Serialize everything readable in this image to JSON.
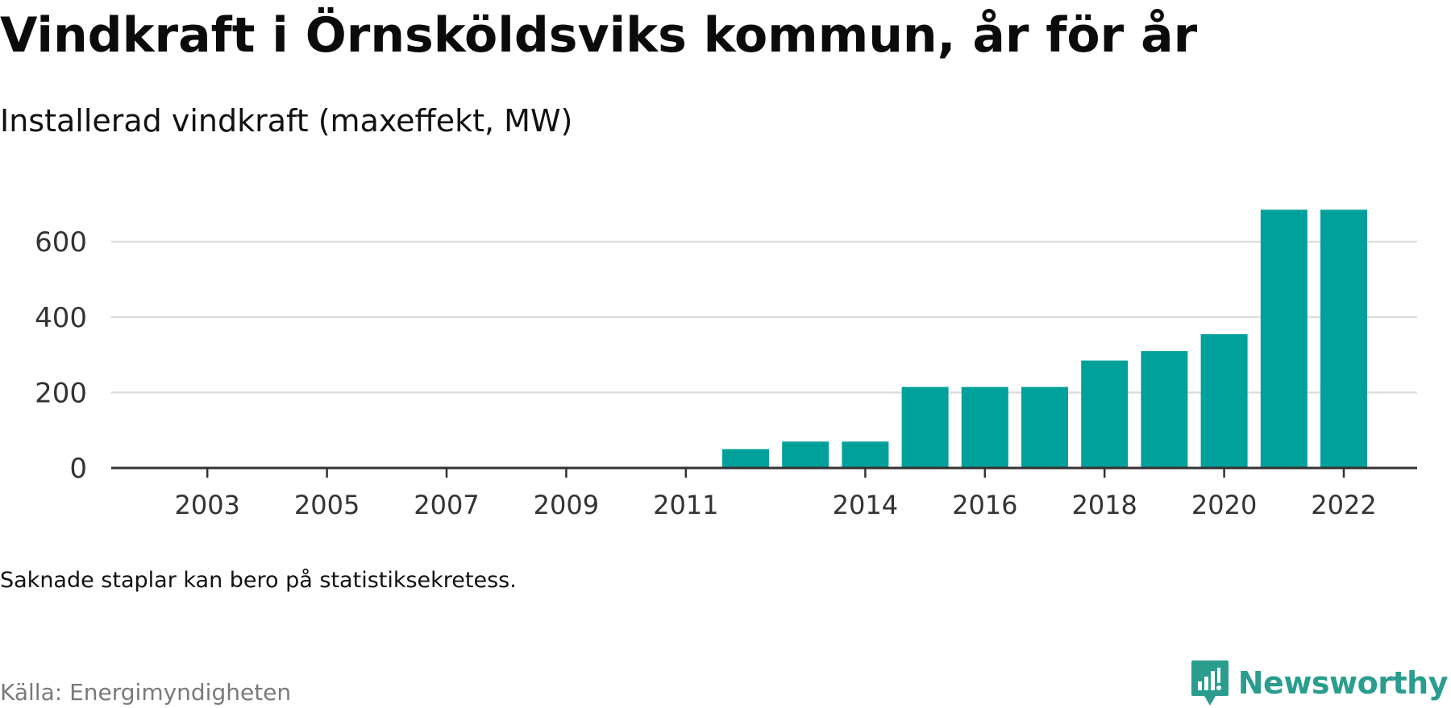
{
  "header": {
    "title": "Vindkraft i Örnsköldsviks kommun, år för år",
    "subtitle": "Installerad vindkraft (maxeffekt, MW)"
  },
  "footer": {
    "note": "Saknade staplar kan bero på statistiksekretess.",
    "source": "Källa: Energimyndigheten",
    "brand": "Newsworthy"
  },
  "colors": {
    "bar": "#00a19a",
    "grid": "#dddddd",
    "axis": "#333333",
    "tick_text": "#333333",
    "brand": "#2a9d8f"
  },
  "chart_data": {
    "type": "bar",
    "title": "Vindkraft i Örnsköldsviks kommun, år för år",
    "subtitle": "Installerad vindkraft (maxeffekt, MW)",
    "categories": [
      "2002",
      "2003",
      "2004",
      "2005",
      "2006",
      "2007",
      "2008",
      "2009",
      "2010",
      "2011",
      "2012",
      "2013",
      "2014",
      "2015",
      "2016",
      "2017",
      "2018",
      "2019",
      "2020",
      "2021",
      "2022"
    ],
    "values": [
      0,
      0,
      0,
      0,
      0,
      0,
      0,
      0,
      0,
      0,
      50,
      70,
      70,
      215,
      215,
      215,
      285,
      310,
      355,
      685,
      685
    ],
    "x_tick_labels": [
      "2003",
      "2005",
      "2007",
      "2009",
      "2011",
      "2014",
      "2016",
      "2018",
      "2020",
      "2022"
    ],
    "y_ticks": [
      0,
      200,
      400,
      600
    ],
    "ylim": [
      0,
      720
    ],
    "xlabel": "",
    "ylabel": "",
    "grid": true,
    "legend": "none"
  }
}
